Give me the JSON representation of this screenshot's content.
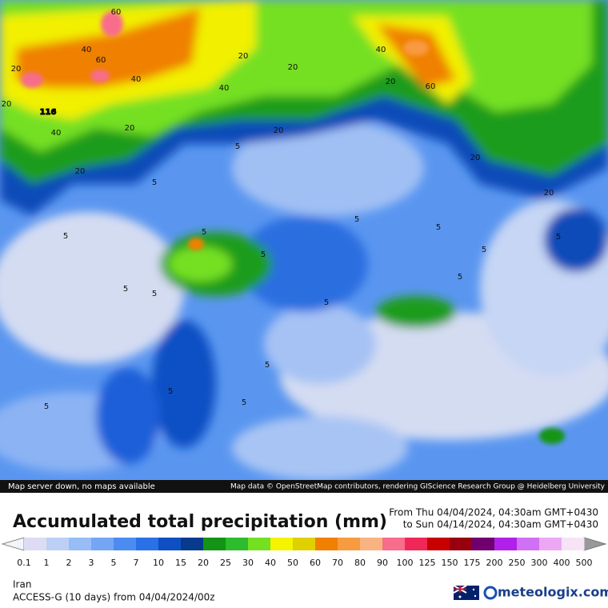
{
  "map": {
    "labels": [
      "116",
      "60",
      "40",
      "60",
      "40",
      "20",
      "20",
      "40",
      "20",
      "20",
      "20",
      "20",
      "40",
      "20",
      "60",
      "40",
      "20",
      "20",
      "20",
      "5",
      "5",
      "5",
      "5",
      "5",
      "5",
      "5",
      "5",
      "5",
      "5",
      "5",
      "5",
      "5",
      "5",
      "5",
      "5",
      "5"
    ],
    "notice": "Map server down, no maps available",
    "attribution": "Map data © OpenStreetMap contributors, rendering GIScience Research Group @ Heidelberg University"
  },
  "header": {
    "title": "Accumulated total precipitation (mm)",
    "from": "From Thu 04/04/2024, 04:30am GMT+0430",
    "to": "to Sun 04/14/2024, 04:30am GMT+0430"
  },
  "legend": {
    "labels": [
      "0.1",
      "1",
      "2",
      "3",
      "5",
      "7",
      "10",
      "15",
      "20",
      "25",
      "30",
      "40",
      "50",
      "60",
      "70",
      "80",
      "90",
      "100",
      "125",
      "150",
      "175",
      "200",
      "250",
      "300",
      "400",
      "500"
    ],
    "colors": [
      "#dcdcf4",
      "#bcd0f6",
      "#98bcf6",
      "#74a6f4",
      "#4c8cf0",
      "#2a70e6",
      "#0e50c4",
      "#063a8c",
      "#149414",
      "#2cbc2c",
      "#74e020",
      "#f4f400",
      "#e0d000",
      "#f08000",
      "#f89a40",
      "#f8b480",
      "#f86c8c",
      "#f02858",
      "#c80000",
      "#980010",
      "#700070",
      "#b020e8",
      "#d070f4",
      "#eca8f4",
      "#f6e4f6"
    ]
  },
  "footer": {
    "region": "Iran",
    "model": "ACCESS-G (10 days) from 04/04/2024/00z",
    "brand": "meteologix.com"
  }
}
